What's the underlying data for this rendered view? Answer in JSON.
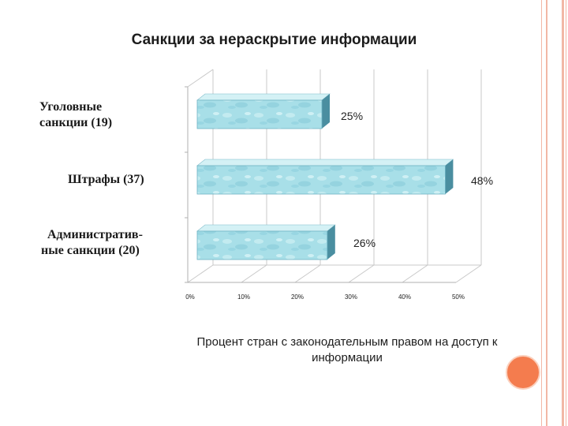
{
  "title": "Санкции за нераскрытие информации",
  "chart_data": {
    "type": "bar",
    "orientation": "horizontal",
    "three_d": true,
    "title": "Санкции за нераскрытие информации",
    "xlabel": "Процент стран с законодательным правом на доступ к информации",
    "ylabel": "",
    "xlim": [
      0,
      50
    ],
    "x_ticks": [
      "0%",
      "10%",
      "20%",
      "30%",
      "40%",
      "50%"
    ],
    "categories": [
      [
        "Уголовные",
        "санкции (19)"
      ],
      [
        "Штрафы (37)"
      ],
      [
        "Административ-",
        "ные санкции (20)"
      ]
    ],
    "values": [
      25,
      48,
      26
    ],
    "value_labels": [
      "25%",
      "48%",
      "26%"
    ],
    "grid": true,
    "colors": {
      "bar_front": "#a8dfe8",
      "bar_top": "#d4f1f5",
      "bar_side": "#4a8ea0"
    }
  }
}
